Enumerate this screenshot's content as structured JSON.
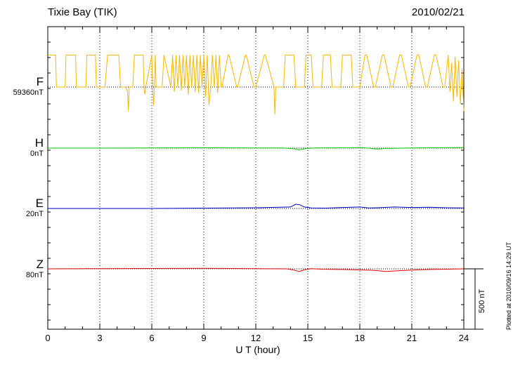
{
  "header": {
    "station": "Tixie Bay (TIK)",
    "date": "2010/02/21"
  },
  "components": [
    {
      "name": "F",
      "baseline": "59360nT",
      "color": "#f5b800"
    },
    {
      "name": "H",
      "baseline": "0nT",
      "color": "#00cc00"
    },
    {
      "name": "E",
      "baseline": "20nT",
      "color": "#0000cc"
    },
    {
      "name": "Z",
      "baseline": "80nT",
      "color": "#dd0000"
    }
  ],
  "scale_label": "500 nT",
  "plotted_note": "Plotted at 2010/09/16 14:29 UT",
  "chart_data": {
    "type": "line",
    "xlabel": "U T (hour)",
    "xlim": [
      0,
      24
    ],
    "xticks": [
      "0",
      "3",
      "6",
      "9",
      "12",
      "15",
      "18",
      "21",
      "24"
    ],
    "scale_bar_nT": 500,
    "grid": "dotted vertical lines every 3 h",
    "series": [
      {
        "name": "F",
        "baseline_nT": 59360,
        "style": "rapid square-wave switching between baseline and about +265 nT, with downward spikes",
        "x": [
          0.0,
          0.45,
          0.5,
          1.0,
          1.05,
          1.6,
          1.65,
          2.2,
          2.25,
          2.75,
          2.8,
          3.3,
          3.45,
          4.1,
          4.2,
          4.5,
          4.6,
          4.65,
          4.7,
          4.9,
          5.0,
          5.5,
          5.55,
          5.6,
          5.65,
          6.0,
          6.05,
          6.1,
          6.15,
          6.2,
          6.25,
          6.6,
          6.7,
          7.1,
          7.2,
          7.3,
          7.4,
          7.5,
          7.6,
          7.7,
          7.8,
          7.9,
          8.0,
          8.1,
          8.2,
          8.3,
          8.4,
          8.5,
          8.6,
          8.7,
          8.8,
          8.9,
          9.0,
          9.1,
          9.2,
          9.3,
          9.4,
          9.5,
          9.6,
          9.7,
          9.8,
          9.9,
          10.0,
          10.05,
          10.4,
          10.45,
          10.9,
          10.95,
          11.4,
          11.45,
          11.9,
          12.0,
          12.5,
          12.55,
          13.05,
          13.1,
          13.15,
          13.6,
          13.7,
          14.2,
          14.3,
          14.8,
          14.9,
          15.2,
          15.3,
          15.8,
          15.9,
          16.3,
          16.4,
          16.9,
          17.0,
          17.5,
          17.6,
          18.0,
          18.3,
          18.4,
          18.8,
          18.9,
          19.3,
          19.4,
          19.8,
          19.9,
          20.3,
          20.4,
          20.8,
          20.9,
          21.3,
          21.4,
          21.8,
          21.9,
          22.3,
          22.4,
          22.8,
          22.9,
          23.1,
          23.2,
          23.3,
          23.4,
          23.5,
          23.6,
          23.7,
          23.8,
          23.9,
          24.0
        ],
        "values": [
          265,
          265,
          0,
          0,
          265,
          265,
          0,
          0,
          265,
          265,
          0,
          0,
          265,
          265,
          0,
          0,
          -40,
          -200,
          0,
          0,
          265,
          265,
          0,
          -60,
          0,
          265,
          0,
          -150,
          0,
          265,
          0,
          0,
          265,
          0,
          265,
          -40,
          265,
          0,
          265,
          -30,
          265,
          0,
          265,
          -60,
          265,
          0,
          265,
          -40,
          265,
          -50,
          265,
          0,
          265,
          -80,
          265,
          -150,
          0,
          265,
          0,
          265,
          -50,
          265,
          0,
          0,
          265,
          265,
          0,
          0,
          265,
          265,
          0,
          0,
          265,
          265,
          0,
          -230,
          0,
          0,
          265,
          265,
          0,
          0,
          265,
          265,
          0,
          0,
          265,
          265,
          0,
          0,
          265,
          265,
          0,
          0,
          265,
          265,
          0,
          0,
          265,
          265,
          0,
          0,
          265,
          265,
          0,
          0,
          265,
          265,
          0,
          0,
          265,
          265,
          0,
          0,
          265,
          -40,
          200,
          -120,
          250,
          -80,
          220,
          -140,
          150,
          -200
        ]
      },
      {
        "name": "H",
        "baseline_nT": 0,
        "x": [
          0,
          3,
          6,
          9,
          12,
          13.5,
          14.2,
          14.5,
          14.9,
          15.5,
          17.5,
          18,
          18.6,
          19,
          19.5,
          21,
          24
        ],
        "values": [
          0,
          0,
          2,
          3,
          1,
          2,
          -5,
          -15,
          -3,
          2,
          3,
          5,
          -2,
          -8,
          -3,
          2,
          4
        ]
      },
      {
        "name": "E",
        "baseline_nT": 20,
        "x": [
          0,
          3,
          6,
          9,
          12,
          14.0,
          14.3,
          14.55,
          14.8,
          15.2,
          16,
          17,
          18,
          18.5,
          19,
          20,
          21,
          22,
          23,
          24
        ],
        "values": [
          0,
          0,
          0,
          3,
          6,
          12,
          35,
          30,
          12,
          4,
          3,
          8,
          12,
          4,
          6,
          12,
          8,
          10,
          6,
          4
        ]
      },
      {
        "name": "Z",
        "baseline_nT": 80,
        "x": [
          0,
          3,
          6,
          9,
          12,
          13.8,
          14.2,
          14.5,
          14.8,
          15.2,
          15.8,
          17,
          18.3,
          18.8,
          19.5,
          20.3,
          21,
          22,
          23,
          24
        ],
        "values": [
          0,
          2,
          3,
          4,
          2,
          0,
          -10,
          -22,
          -8,
          2,
          -3,
          -5,
          -10,
          -12,
          -22,
          -15,
          -10,
          -5,
          -3,
          0
        ]
      }
    ]
  }
}
